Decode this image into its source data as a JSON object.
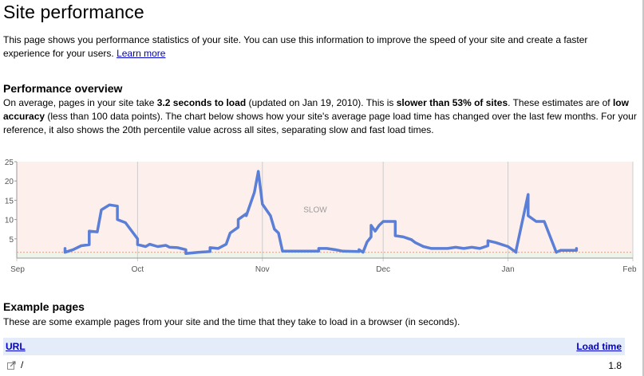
{
  "page": {
    "title": "Site performance",
    "intro": "This page shows you performance statistics of your site. You can use this information to improve the speed of your site and create a faster experience for your users.",
    "learn_more": "Learn more"
  },
  "overview": {
    "heading": "Performance overview",
    "p1": "On average, pages in your site take ",
    "load_time": "3.2 seconds to load",
    "p2": " (updated on Jan 19, 2010). This is ",
    "slower": "slower than 53% of sites",
    "p3": ". These estimates are of ",
    "accuracy": "low accuracy",
    "p4": " (less than 100 data points). The chart below shows how your site's average page load time has changed over the last few months. For your reference, it also shows the 20th percentile value across all sites, separating slow and fast load times."
  },
  "chart_data": {
    "type": "line",
    "zone_label": "SLOW",
    "y_ticks": [
      "25",
      "20",
      "15",
      "10",
      "5"
    ],
    "ylim": [
      0,
      25
    ],
    "x_ticks": [
      "Sep",
      "Oct",
      "Nov",
      "Dec",
      "Jan",
      "Feb"
    ],
    "threshold": 1.5,
    "colors": {
      "line": "#5b7fd6",
      "slow_zone": "#fdf0ec",
      "fast_zone": "#eef4ea",
      "threshold": "#e0a080"
    },
    "series": [
      {
        "values": [
          [
            "2009-09-13",
            2.5
          ],
          [
            "2009-09-13",
            1.5
          ],
          [
            "2009-09-15",
            2.2
          ],
          [
            "2009-09-17",
            3.2
          ],
          [
            "2009-09-19",
            3.5
          ],
          [
            "2009-09-19",
            7
          ],
          [
            "2009-09-21",
            6.8
          ],
          [
            "2009-09-22",
            12.5
          ],
          [
            "2009-09-24",
            13.8
          ],
          [
            "2009-09-26",
            13.5
          ],
          [
            "2009-09-26",
            10
          ],
          [
            "2009-09-28",
            9.2
          ],
          [
            "2009-10-01",
            5
          ],
          [
            "2009-10-01",
            3.5
          ],
          [
            "2009-10-03",
            3
          ],
          [
            "2009-10-04",
            3.6
          ],
          [
            "2009-10-06",
            3
          ],
          [
            "2009-10-08",
            3.3
          ],
          [
            "2009-10-09",
            2.8
          ],
          [
            "2009-10-11",
            2.7
          ],
          [
            "2009-10-13",
            2.2
          ],
          [
            "2009-10-13",
            1.2
          ],
          [
            "2009-10-16",
            1.5
          ],
          [
            "2009-10-19",
            1.7
          ],
          [
            "2009-10-19",
            2.7
          ],
          [
            "2009-10-21",
            2.5
          ],
          [
            "2009-10-23",
            3.6
          ],
          [
            "2009-10-24",
            6.5
          ],
          [
            "2009-10-26",
            8
          ],
          [
            "2009-10-26",
            10
          ],
          [
            "2009-10-28",
            11.5
          ],
          [
            "2009-10-28",
            11
          ],
          [
            "2009-10-30",
            17
          ],
          [
            "2009-10-31",
            22.5
          ],
          [
            "2009-11-01",
            14
          ],
          [
            "2009-11-03",
            11
          ],
          [
            "2009-11-04",
            7.5
          ],
          [
            "2009-11-05",
            6.5
          ],
          [
            "2009-11-06",
            1.8
          ],
          [
            "2009-11-15",
            1.8
          ],
          [
            "2009-11-15",
            2.5
          ],
          [
            "2009-11-17",
            2.5
          ],
          [
            "2009-11-19",
            2.2
          ],
          [
            "2009-11-21",
            1.8
          ],
          [
            "2009-11-25",
            1.7
          ],
          [
            "2009-11-25",
            2.2
          ],
          [
            "2009-11-26",
            1.5
          ],
          [
            "2009-11-27",
            4.2
          ],
          [
            "2009-11-28",
            5.5
          ],
          [
            "2009-11-28",
            8.5
          ],
          [
            "2009-11-29",
            7
          ],
          [
            "2009-11-30",
            8.5
          ],
          [
            "2009-12-01",
            9.5
          ],
          [
            "2009-12-04",
            9.5
          ],
          [
            "2009-12-04",
            5.8
          ],
          [
            "2009-12-06",
            5.5
          ],
          [
            "2009-12-08",
            4.8
          ],
          [
            "2009-12-09",
            4
          ],
          [
            "2009-12-10",
            3.5
          ],
          [
            "2009-12-11",
            3
          ],
          [
            "2009-12-13",
            2.5
          ],
          [
            "2009-12-17",
            2.5
          ],
          [
            "2009-12-19",
            2.8
          ],
          [
            "2009-12-21",
            2.5
          ],
          [
            "2009-12-23",
            2.8
          ],
          [
            "2009-12-25",
            2.5
          ],
          [
            "2009-12-27",
            3.2
          ],
          [
            "2009-12-27",
            4.5
          ],
          [
            "2009-12-29",
            4
          ],
          [
            "2010-01-01",
            3
          ],
          [
            "2010-01-03",
            1.5
          ],
          [
            "2010-01-03",
            2
          ],
          [
            "2010-01-06",
            16.5
          ],
          [
            "2010-01-06",
            11
          ],
          [
            "2010-01-08",
            9.5
          ],
          [
            "2010-01-10",
            9.5
          ],
          [
            "2010-01-13",
            1.5
          ],
          [
            "2010-01-14",
            2
          ],
          [
            "2010-01-18",
            2
          ],
          [
            "2010-01-18",
            2.5
          ]
        ]
      }
    ]
  },
  "examples": {
    "heading": "Example pages",
    "text": "These are some example pages from your site and the time that they take to load in a browser (in seconds).",
    "columns": {
      "url": "URL",
      "load_time": "Load time"
    },
    "rows": [
      {
        "url": "/",
        "load_time": "1.8"
      }
    ]
  }
}
